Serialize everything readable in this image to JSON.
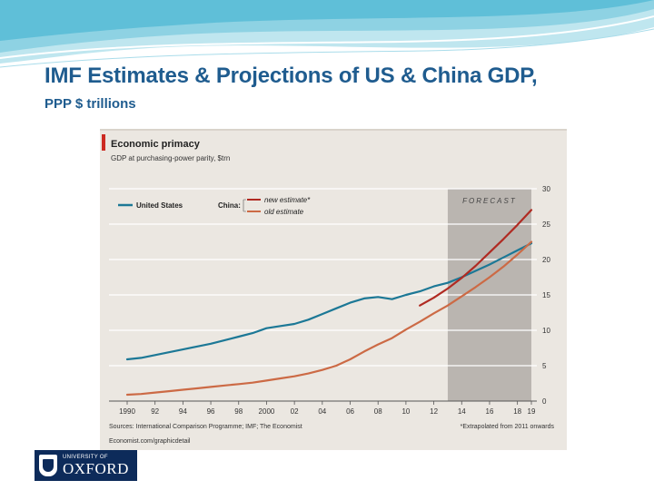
{
  "slide": {
    "title": "IMF Estimates & Projections of US & China GDP,",
    "subtitle": "PPP $ trillions"
  },
  "chart_data": {
    "type": "line",
    "title": "Economic primacy",
    "subtitle": "GDP at purchasing-power parity, $trn",
    "x_ticks": [
      "1990",
      "92",
      "94",
      "96",
      "98",
      "2000",
      "02",
      "04",
      "06",
      "08",
      "10",
      "12",
      "14",
      "16",
      "18",
      "19"
    ],
    "y_ticks": [
      0,
      5,
      10,
      15,
      20,
      25,
      30
    ],
    "ylim": [
      0,
      30
    ],
    "xlim": [
      1990,
      2019
    ],
    "forecast_label": "FORECAST",
    "forecast_range": [
      2013,
      2019
    ],
    "legend": {
      "us_label": "United States",
      "china_label": "China:",
      "new_label": "new estimate*",
      "old_label": "old estimate"
    },
    "series": [
      {
        "name": "United States",
        "color": "#1c7896",
        "x": [
          1990,
          1991,
          1992,
          1993,
          1994,
          1995,
          1996,
          1997,
          1998,
          1999,
          2000,
          2001,
          2002,
          2003,
          2004,
          2005,
          2006,
          2007,
          2008,
          2009,
          2010,
          2011,
          2012,
          2013,
          2014,
          2015,
          2016,
          2017,
          2018,
          2019
        ],
        "values": [
          5.9,
          6.1,
          6.5,
          6.9,
          7.3,
          7.7,
          8.1,
          8.6,
          9.1,
          9.6,
          10.3,
          10.6,
          10.9,
          11.5,
          12.3,
          13.1,
          13.9,
          14.5,
          14.7,
          14.4,
          15.0,
          15.5,
          16.2,
          16.7,
          17.5,
          18.4,
          19.3,
          20.3,
          21.3,
          22.3
        ]
      },
      {
        "name": "China new estimate*",
        "color": "#b02a22",
        "x": [
          2011,
          2012,
          2013,
          2014,
          2015,
          2016,
          2017,
          2018,
          2019
        ],
        "values": [
          13.5,
          14.6,
          15.9,
          17.4,
          19.1,
          21.0,
          22.9,
          24.9,
          27.0
        ]
      },
      {
        "name": "China old estimate",
        "color": "#cc6a45",
        "x": [
          1990,
          1991,
          1992,
          1993,
          1994,
          1995,
          1996,
          1997,
          1998,
          1999,
          2000,
          2001,
          2002,
          2003,
          2004,
          2005,
          2006,
          2007,
          2008,
          2009,
          2010,
          2011,
          2012,
          2013,
          2014,
          2015,
          2016,
          2017,
          2018,
          2019
        ],
        "values": [
          0.9,
          1.0,
          1.2,
          1.4,
          1.6,
          1.8,
          2.0,
          2.2,
          2.4,
          2.6,
          2.9,
          3.2,
          3.5,
          3.9,
          4.4,
          5.0,
          5.9,
          7.0,
          8.0,
          8.9,
          10.1,
          11.2,
          12.4,
          13.5,
          14.8,
          16.1,
          17.5,
          19.0,
          20.7,
          22.5
        ]
      }
    ],
    "source": "Sources: International Comparison Programme; IMF; The Economist",
    "footnote": "*Extrapolated from 2011 onwards",
    "credit": "Economist.com/graphicdetail"
  },
  "logo": {
    "top_line": "UNIVERSITY OF",
    "main": "OXFORD"
  }
}
